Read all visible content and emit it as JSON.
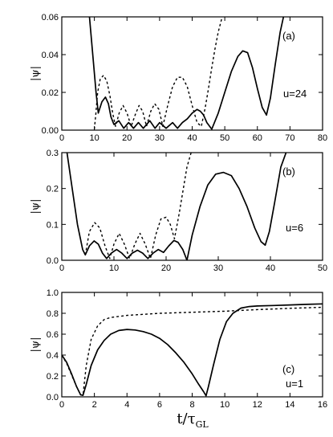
{
  "chart_data": [
    {
      "type": "line",
      "panel_label": "(a)",
      "annotation": "u=24",
      "ylabel": "|ψ|",
      "xlim": [
        0,
        80
      ],
      "ylim": [
        0,
        0.06
      ],
      "xticks": [
        "0",
        "10",
        "20",
        "30",
        "40",
        "50",
        "60",
        "70",
        "80"
      ],
      "yticks": [
        "0.00",
        "0.02",
        "0.04",
        "0.06"
      ],
      "series": [
        {
          "style": "solid",
          "x": [
            8.5,
            9.5,
            10.5,
            11.2,
            12.3,
            13.4,
            14.3,
            15.1,
            16.0,
            17.5,
            19.0,
            20.5,
            22.0,
            23.5,
            25.0,
            27.0,
            28.6,
            30.0,
            32.0,
            34.0,
            35.5,
            37.0,
            38.5,
            40.0,
            41.5,
            42.5,
            43.5,
            44.5,
            46.0,
            48.0,
            50.0,
            52.0,
            54.0,
            55.5,
            57.0,
            58.5,
            60.0,
            61.5,
            62.8,
            64.0,
            65.5,
            67.0,
            68.0
          ],
          "y": [
            0.06,
            0.04,
            0.02,
            0.009,
            0.015,
            0.0175,
            0.014,
            0.007,
            0.003,
            0.005,
            0.001,
            0.004,
            0.001,
            0.004,
            0.001,
            0.005,
            0.001,
            0.004,
            0.001,
            0.004,
            0.001,
            0.004,
            0.006,
            0.009,
            0.011,
            0.01,
            0.008,
            0.004,
            0.0005,
            0.009,
            0.02,
            0.031,
            0.039,
            0.042,
            0.041,
            0.033,
            0.022,
            0.012,
            0.008,
            0.017,
            0.035,
            0.052,
            0.06
          ]
        },
        {
          "style": "dashed",
          "x": [
            10.0,
            10.4,
            11.0,
            11.8,
            12.8,
            13.8,
            14.8,
            15.6,
            16.5,
            17.6,
            18.8,
            20.0,
            21.3,
            22.5,
            23.7,
            24.8,
            26.0,
            27.3,
            28.5,
            29.8,
            31.0,
            32.5,
            34.0,
            35.5,
            37.0,
            38.5,
            40.0,
            41.5,
            42.8,
            44.0,
            45.0,
            46.0,
            47.0,
            48.0,
            49.2
          ],
          "y": [
            0.0005,
            0.008,
            0.02,
            0.027,
            0.029,
            0.026,
            0.018,
            0.009,
            0.002,
            0.009,
            0.013,
            0.009,
            0.002,
            0.008,
            0.013,
            0.01,
            0.002,
            0.01,
            0.014,
            0.011,
            0.002,
            0.013,
            0.023,
            0.028,
            0.028,
            0.023,
            0.013,
            0.004,
            0.002,
            0.012,
            0.022,
            0.033,
            0.043,
            0.052,
            0.06
          ]
        }
      ]
    },
    {
      "type": "line",
      "panel_label": "(b)",
      "annotation": "u=6",
      "ylabel": "|ψ|",
      "xlim": [
        0,
        50
      ],
      "ylim": [
        0,
        0.3
      ],
      "xticks": [
        "0",
        "10",
        "20",
        "30",
        "40",
        "50"
      ],
      "yticks": [
        "0.0",
        "0.1",
        "0.2",
        "0.3"
      ],
      "series": [
        {
          "style": "solid",
          "x": [
            1.0,
            2.0,
            3.0,
            4.0,
            4.5,
            5.3,
            6.2,
            7.0,
            7.8,
            8.6,
            9.5,
            10.5,
            11.5,
            12.5,
            13.5,
            14.5,
            15.5,
            16.5,
            17.5,
            18.5,
            19.5,
            20.5,
            21.5,
            22.3,
            23.2,
            24.0,
            25.0,
            26.5,
            28.0,
            29.5,
            31.0,
            32.5,
            34.0,
            35.5,
            37.0,
            38.2,
            39.0,
            39.8,
            40.8,
            42.0,
            43.0
          ],
          "y": [
            0.3,
            0.2,
            0.1,
            0.03,
            0.015,
            0.04,
            0.054,
            0.045,
            0.02,
            0.005,
            0.02,
            0.03,
            0.02,
            0.005,
            0.02,
            0.028,
            0.02,
            0.005,
            0.02,
            0.03,
            0.022,
            0.04,
            0.055,
            0.05,
            0.03,
            0.0,
            0.07,
            0.15,
            0.21,
            0.24,
            0.245,
            0.236,
            0.2,
            0.15,
            0.09,
            0.052,
            0.042,
            0.08,
            0.16,
            0.26,
            0.3
          ]
        },
        {
          "style": "dashed",
          "x": [
            4.5,
            5.3,
            6.3,
            7.3,
            8.3,
            9.2,
            10.0,
            11.0,
            12.0,
            13.0,
            14.0,
            15.0,
            16.0,
            17.0,
            18.0,
            19.0,
            20.0,
            20.8,
            21.6,
            22.5,
            23.3,
            24.0,
            24.8
          ],
          "y": [
            0.015,
            0.08,
            0.105,
            0.09,
            0.04,
            0.005,
            0.045,
            0.075,
            0.045,
            0.005,
            0.045,
            0.075,
            0.045,
            0.005,
            0.07,
            0.115,
            0.12,
            0.1,
            0.06,
            0.13,
            0.2,
            0.26,
            0.3
          ]
        }
      ]
    },
    {
      "type": "line",
      "panel_label": "(c)",
      "annotation": "u=1",
      "ylabel": "|ψ|",
      "xlabel": "t/τGL",
      "xlim": [
        0,
        16
      ],
      "ylim": [
        0,
        1.0
      ],
      "xticks": [
        "0",
        "2",
        "4",
        "6",
        "8",
        "10",
        "12",
        "14",
        "16"
      ],
      "yticks": [
        "0.0",
        "0.2",
        "0.4",
        "0.6",
        "0.8",
        "1.0"
      ],
      "series": [
        {
          "style": "solid",
          "x": [
            0.0,
            0.3,
            0.6,
            0.9,
            1.15,
            1.3,
            1.5,
            1.8,
            2.2,
            2.6,
            3.0,
            3.5,
            4.0,
            4.5,
            5.0,
            5.5,
            6.0,
            6.5,
            7.0,
            7.5,
            8.0,
            8.4,
            8.7,
            8.85,
            9.0,
            9.3,
            9.7,
            10.1,
            10.5,
            11.0,
            11.5,
            12.0,
            13.0,
            14.0,
            15.0,
            16.0
          ],
          "y": [
            0.4,
            0.33,
            0.22,
            0.1,
            0.02,
            0.015,
            0.12,
            0.3,
            0.45,
            0.54,
            0.6,
            0.635,
            0.645,
            0.64,
            0.625,
            0.6,
            0.56,
            0.5,
            0.42,
            0.33,
            0.22,
            0.12,
            0.05,
            0.01,
            0.1,
            0.3,
            0.55,
            0.72,
            0.8,
            0.85,
            0.865,
            0.87,
            0.875,
            0.88,
            0.885,
            0.89
          ]
        },
        {
          "style": "dashed",
          "x": [
            0.0,
            0.3,
            0.6,
            0.9,
            1.15,
            1.3,
            1.5,
            1.8,
            2.2,
            2.6,
            3.0,
            3.5,
            4.0,
            5.0,
            6.0,
            8.0,
            10.0,
            12.0,
            14.0,
            16.0
          ],
          "y": [
            0.4,
            0.32,
            0.21,
            0.1,
            0.02,
            0.015,
            0.3,
            0.55,
            0.68,
            0.74,
            0.76,
            0.77,
            0.78,
            0.79,
            0.8,
            0.81,
            0.82,
            0.835,
            0.848,
            0.858
          ]
        }
      ]
    }
  ]
}
